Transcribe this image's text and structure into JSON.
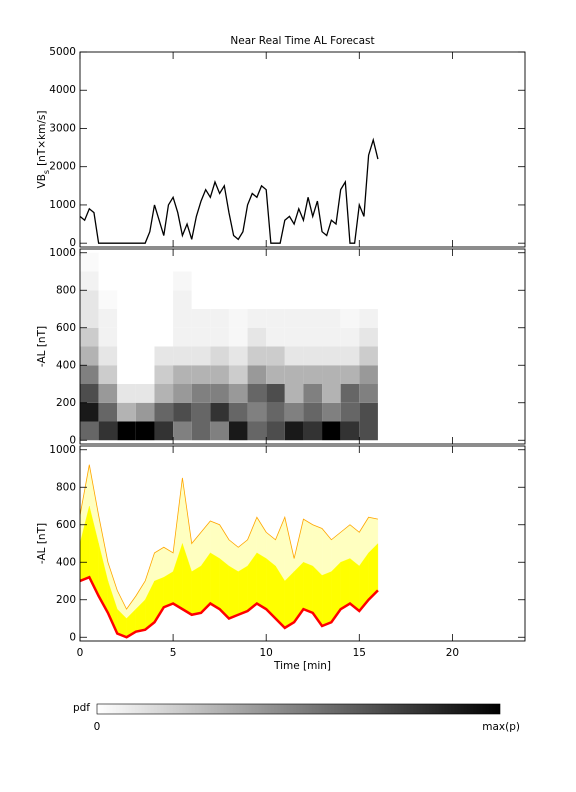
{
  "chart_data": [
    {
      "type": "line",
      "title": "Near Real Time AL Forecast",
      "ylabel": {
        "main": "VB",
        "sub": "s",
        "unit": "[nT×km/s]"
      },
      "xlim": [
        0,
        23.9
      ],
      "xticks": [
        0,
        5,
        10,
        15,
        20
      ],
      "show_xtick_labels": false,
      "ylim": [
        -100,
        5000
      ],
      "yticks": [
        0,
        1000,
        2000,
        3000,
        4000,
        5000
      ],
      "color": "#000000",
      "x": [
        0,
        0.25,
        0.5,
        0.75,
        1,
        1.25,
        1.5,
        1.75,
        2,
        2.25,
        2.5,
        2.75,
        3,
        3.25,
        3.5,
        3.75,
        4,
        4.25,
        4.5,
        4.75,
        5,
        5.25,
        5.5,
        5.75,
        6,
        6.25,
        6.5,
        6.75,
        7,
        7.25,
        7.5,
        7.75,
        8,
        8.25,
        8.5,
        8.75,
        9,
        9.25,
        9.5,
        9.75,
        10,
        10.25,
        10.5,
        10.75,
        11,
        11.25,
        11.5,
        11.75,
        12,
        12.25,
        12.5,
        12.75,
        13,
        13.25,
        13.5,
        13.75,
        14,
        14.25,
        14.5,
        14.75,
        15,
        15.25,
        15.5,
        15.75,
        16
      ],
      "values": [
        700,
        600,
        900,
        800,
        0,
        0,
        0,
        0,
        0,
        0,
        0,
        0,
        0,
        0,
        0,
        300,
        1000,
        600,
        200,
        1000,
        1200,
        800,
        200,
        500,
        100,
        700,
        1100,
        1400,
        1200,
        1600,
        1300,
        1500,
        800,
        200,
        100,
        300,
        1000,
        1300,
        1200,
        1500,
        1400,
        0,
        0,
        0,
        600,
        700,
        500,
        900,
        600,
        1200,
        700,
        1100,
        300,
        200,
        600,
        500,
        1400,
        1600,
        0,
        0,
        1000,
        700,
        2300,
        2700,
        2200
      ]
    },
    {
      "type": "heatmap",
      "ylabel": "-AL [nT]",
      "xlim": [
        0,
        23.9
      ],
      "xticks": [
        0,
        5,
        10,
        15,
        20
      ],
      "show_xtick_labels": false,
      "ylim": [
        -20,
        1020
      ],
      "yticks": [
        0,
        200,
        400,
        600,
        800,
        1000
      ],
      "bins_x": [
        0,
        1,
        2,
        3,
        4,
        5,
        6,
        7,
        8,
        9,
        10,
        11,
        12,
        13,
        14,
        15,
        16
      ],
      "bins_y": [
        0,
        100,
        200,
        300,
        400,
        500,
        600,
        700,
        800,
        900,
        1000
      ],
      "pdf": [
        [
          0.6,
          0.9,
          0.7,
          0.5,
          0.3,
          0.2,
          0.1,
          0.1,
          0.05,
          0.02
        ],
        [
          0.8,
          0.6,
          0.4,
          0.2,
          0.1,
          0.05,
          0.05,
          0.02,
          0,
          0
        ],
        [
          1,
          0.3,
          0.1,
          0,
          0,
          0,
          0,
          0,
          0,
          0
        ],
        [
          1,
          0.4,
          0.1,
          0,
          0,
          0,
          0,
          0,
          0,
          0
        ],
        [
          0.8,
          0.6,
          0.3,
          0.2,
          0.1,
          0,
          0,
          0,
          0,
          0
        ],
        [
          0.5,
          0.7,
          0.4,
          0.3,
          0.1,
          0.05,
          0.05,
          0.05,
          0.03,
          0
        ],
        [
          0.6,
          0.6,
          0.5,
          0.3,
          0.1,
          0.05,
          0.05,
          0,
          0,
          0
        ],
        [
          0.5,
          0.8,
          0.5,
          0.3,
          0.15,
          0.05,
          0.05,
          0,
          0,
          0
        ],
        [
          0.9,
          0.6,
          0.4,
          0.2,
          0.1,
          0.03,
          0.03,
          0,
          0,
          0
        ],
        [
          0.6,
          0.5,
          0.6,
          0.4,
          0.2,
          0.1,
          0.05,
          0,
          0,
          0
        ],
        [
          0.7,
          0.6,
          0.7,
          0.3,
          0.2,
          0.05,
          0.05,
          0,
          0,
          0
        ],
        [
          0.9,
          0.5,
          0.3,
          0.3,
          0.1,
          0.05,
          0.05,
          0,
          0,
          0
        ],
        [
          0.8,
          0.6,
          0.5,
          0.3,
          0.1,
          0.05,
          0.05,
          0,
          0,
          0
        ],
        [
          1,
          0.5,
          0.3,
          0.3,
          0.1,
          0.05,
          0.05,
          0,
          0,
          0
        ],
        [
          0.8,
          0.6,
          0.6,
          0.3,
          0.1,
          0.05,
          0.03,
          0,
          0,
          0
        ],
        [
          0.7,
          0.7,
          0.5,
          0.4,
          0.2,
          0.1,
          0.05,
          0,
          0,
          0
        ]
      ],
      "colorbar": {
        "label": "pdf",
        "min_label": "0",
        "max_label": "max(p)"
      }
    },
    {
      "type": "area",
      "ylabel": "-AL [nT]",
      "xlabel": "Time [min]",
      "xlim": [
        0,
        23.9
      ],
      "xticks": [
        0,
        5,
        10,
        15,
        20
      ],
      "show_xtick_labels": true,
      "ylim": [
        -20,
        1020
      ],
      "yticks": [
        0,
        200,
        400,
        600,
        800,
        1000
      ],
      "x": [
        0,
        0.5,
        1,
        1.5,
        2,
        2.5,
        3,
        3.5,
        4,
        4.5,
        5,
        5.5,
        6,
        6.5,
        7,
        7.5,
        8,
        8.5,
        9,
        9.5,
        10,
        10.5,
        11,
        11.5,
        12,
        12.5,
        13,
        13.5,
        14,
        14.5,
        15,
        15.5,
        16
      ],
      "series": [
        {
          "color": "#ff0000",
          "values": [
            300,
            320,
            220,
            130,
            20,
            0,
            30,
            40,
            80,
            160,
            180,
            150,
            120,
            130,
            180,
            150,
            100,
            120,
            140,
            180,
            150,
            100,
            50,
            80,
            150,
            130,
            60,
            80,
            150,
            180,
            140,
            200,
            250
          ]
        },
        {
          "color": "#ffff00",
          "values": [
            500,
            700,
            500,
            300,
            150,
            100,
            150,
            200,
            300,
            320,
            350,
            500,
            350,
            380,
            450,
            420,
            380,
            350,
            380,
            450,
            420,
            380,
            300,
            350,
            400,
            380,
            330,
            350,
            400,
            420,
            380,
            450,
            500
          ]
        },
        {
          "color": "#ffa500",
          "fill": "#ffffc0",
          "values": [
            650,
            920,
            650,
            400,
            250,
            150,
            220,
            300,
            450,
            480,
            450,
            850,
            500,
            560,
            620,
            600,
            520,
            480,
            520,
            640,
            560,
            520,
            640,
            420,
            630,
            600,
            580,
            520,
            560,
            600,
            560,
            640,
            630
          ]
        }
      ]
    }
  ]
}
